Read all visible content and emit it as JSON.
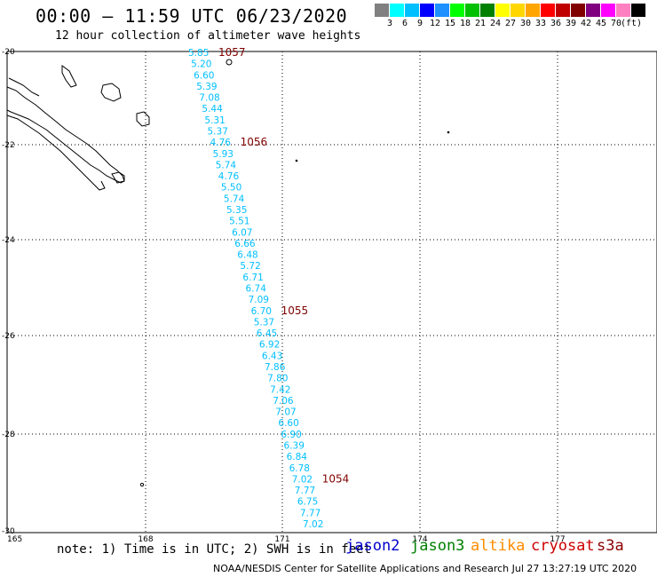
{
  "header": {
    "title": "00:00 – 11:59 UTC 06/23/2020",
    "subtitle": "12 hour collection of altimeter wave heights"
  },
  "legend": {
    "unit": "(ft)",
    "colors": [
      "#808080",
      "#00ffff",
      "#00bfff",
      "#0000ff",
      "#1e90ff",
      "#00ff00",
      "#00c000",
      "#008000",
      "#ffff00",
      "#ffd700",
      "#ffa500",
      "#ff0000",
      "#c00000",
      "#800000",
      "#800080",
      "#ff00ff",
      "#ff80c0",
      "#000000"
    ],
    "labels": [
      "3",
      "6",
      "9",
      "12",
      "15",
      "18",
      "21",
      "24",
      "27",
      "30",
      "33",
      "36",
      "39",
      "42",
      "45",
      "70"
    ]
  },
  "map": {
    "lon_ticks": [
      "165",
      "168",
      "171",
      "174",
      "177"
    ],
    "lat_ticks": [
      "-20",
      "-22",
      "-24",
      "-26",
      "-28",
      "-30"
    ],
    "track_color": "#00bfff",
    "track_label_color": "#800000",
    "track_labels": [
      "1057",
      "1056",
      "1055",
      "1054"
    ],
    "wave_heights": [
      "5.85",
      "5.20",
      "6.60",
      "5.39",
      "7.08",
      "5.44",
      "5.31",
      "5.37",
      "4.76",
      "5.93",
      "5.74",
      "4.76",
      "5.50",
      "5.74",
      "5.35",
      "5.51",
      "6.07",
      "6.66",
      "6.48",
      "5.72",
      "6.71",
      "6.74",
      "7.09",
      "6.70",
      "5.37",
      "6.45",
      "6.92",
      "6.43",
      "7.86",
      "7.80",
      "7.42",
      "7.06",
      "7.07",
      "6.60",
      "6.90",
      "6.39",
      "6.84",
      "6.78",
      "7.02",
      "7.77",
      "6.75",
      "7.77",
      "7.02"
    ]
  },
  "footer": {
    "note": "note: 1) Time is in UTC; 2) SWH is in feet",
    "credit": "NOAA/NESDIS Center for Satellite Applications and Research   Jul 27 13:27:19 UTC 2020",
    "satellites": [
      {
        "name": "jason2",
        "color": "#0000cc"
      },
      {
        "name": "jason3",
        "color": "#008000"
      },
      {
        "name": "altika",
        "color": "#ff8c00"
      },
      {
        "name": "cryosat",
        "color": "#cc0000"
      },
      {
        "name": "s3a",
        "color": "#8b0000"
      }
    ]
  }
}
